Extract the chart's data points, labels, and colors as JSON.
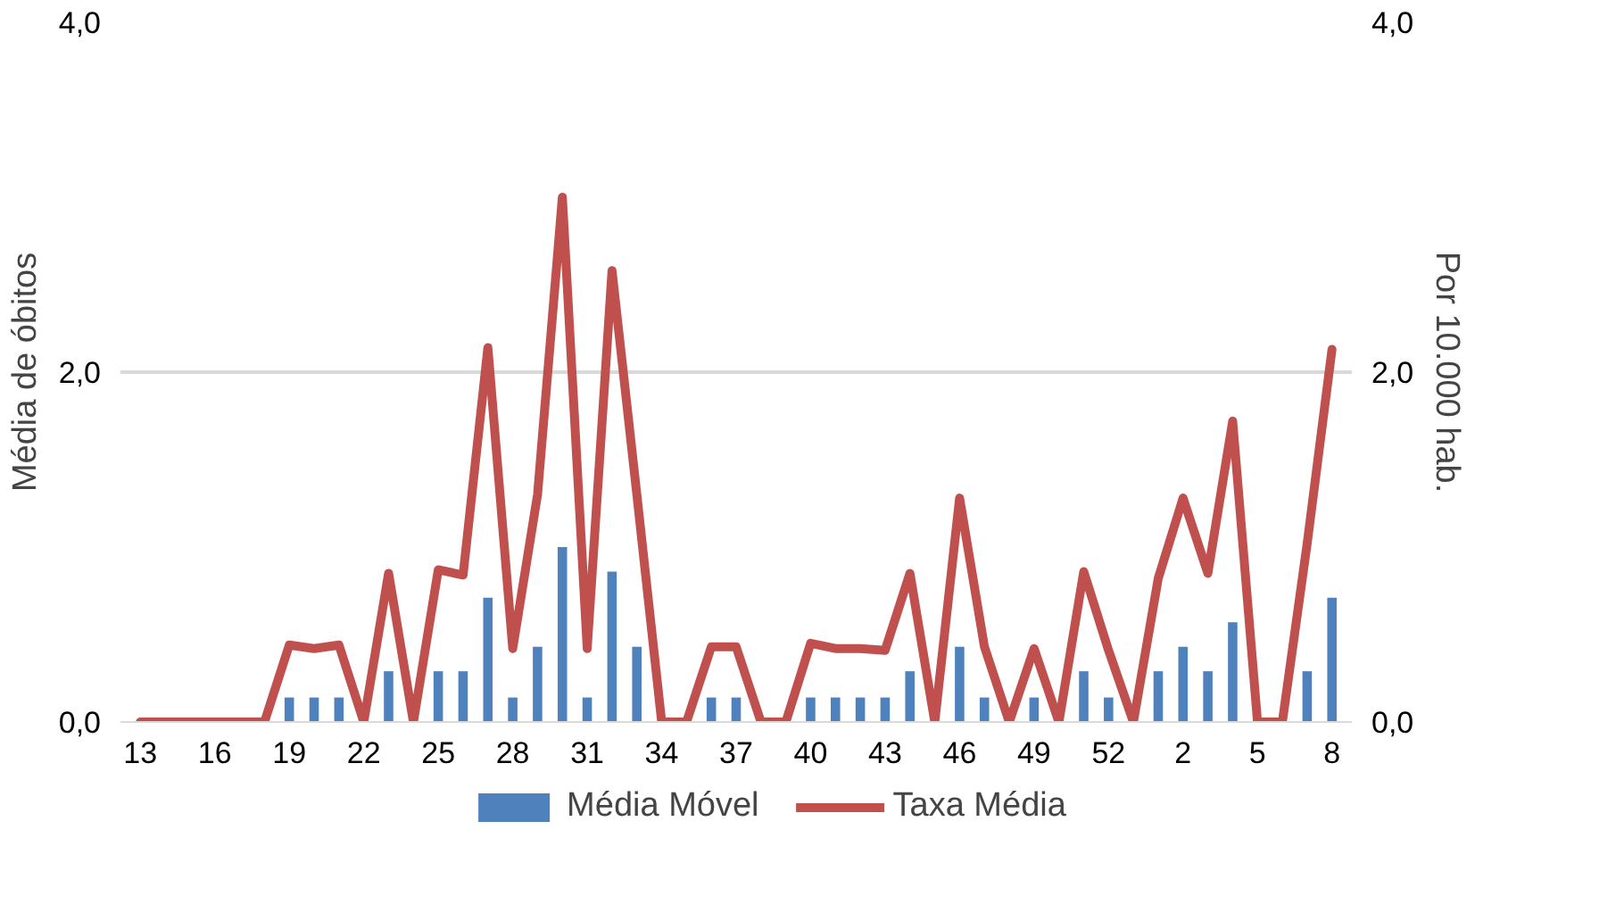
{
  "chart_data": {
    "type": "bar",
    "ylabel": "Média de óbitos",
    "y2label": "Por 10.000 hab.",
    "categories": [
      "13",
      null,
      null,
      "16",
      null,
      null,
      "19",
      null,
      null,
      "22",
      null,
      null,
      "25",
      null,
      null,
      "28",
      null,
      null,
      "31",
      null,
      null,
      "34",
      null,
      null,
      "37",
      null,
      null,
      "40",
      null,
      null,
      "43",
      null,
      null,
      "46",
      null,
      null,
      "49",
      null,
      null,
      "52",
      null,
      null,
      "2",
      null,
      null,
      "5",
      null,
      null,
      "8"
    ],
    "series": [
      {
        "name": "Média Móvel",
        "color": "#4f81bd",
        "values": [
          0,
          0,
          0,
          0,
          0,
          0,
          0.14,
          0.14,
          0.14,
          0,
          0.29,
          0,
          0.29,
          0.29,
          0.71,
          0.14,
          0.43,
          1.0,
          0.14,
          0.86,
          0.43,
          0,
          0,
          0.14,
          0.14,
          0,
          0,
          0.14,
          0.14,
          0.14,
          0.14,
          0.29,
          0,
          0.43,
          0.14,
          0,
          0.14,
          0,
          0.29,
          0.14,
          0,
          0.29,
          0.43,
          0.29,
          0.57,
          0,
          0,
          0.29,
          0.71
        ]
      },
      {
        "name": "Taxa Média",
        "type": "line",
        "axis": "y2",
        "color": "#c0504d",
        "values": [
          0,
          0,
          0,
          0,
          0,
          0,
          0.44,
          0.42,
          0.44,
          0,
          0.85,
          0,
          0.87,
          0.84,
          2.14,
          0.42,
          1.3,
          3.0,
          0.42,
          2.58,
          1.3,
          0,
          0,
          0.43,
          0.43,
          0,
          0,
          0.45,
          0.42,
          0.42,
          0.41,
          0.85,
          0,
          1.28,
          0.43,
          0,
          0.42,
          0,
          0.86,
          0.41,
          0,
          0.82,
          1.28,
          0.85,
          1.72,
          0,
          0,
          1.02,
          2.13
        ]
      }
    ],
    "ylim": [
      0,
      4
    ],
    "yticks": [
      {
        "value": 0,
        "label": "0,0"
      },
      {
        "value": 2,
        "label": "2,0"
      },
      {
        "value": 4,
        "label": "4,0"
      }
    ],
    "y2lim": [
      0,
      4
    ],
    "y2ticks": [
      {
        "value": 0,
        "label": "0,0"
      },
      {
        "value": 2,
        "label": "2,0"
      },
      {
        "value": 4,
        "label": "4,0"
      }
    ],
    "grid": "y",
    "legend": "bottom"
  }
}
